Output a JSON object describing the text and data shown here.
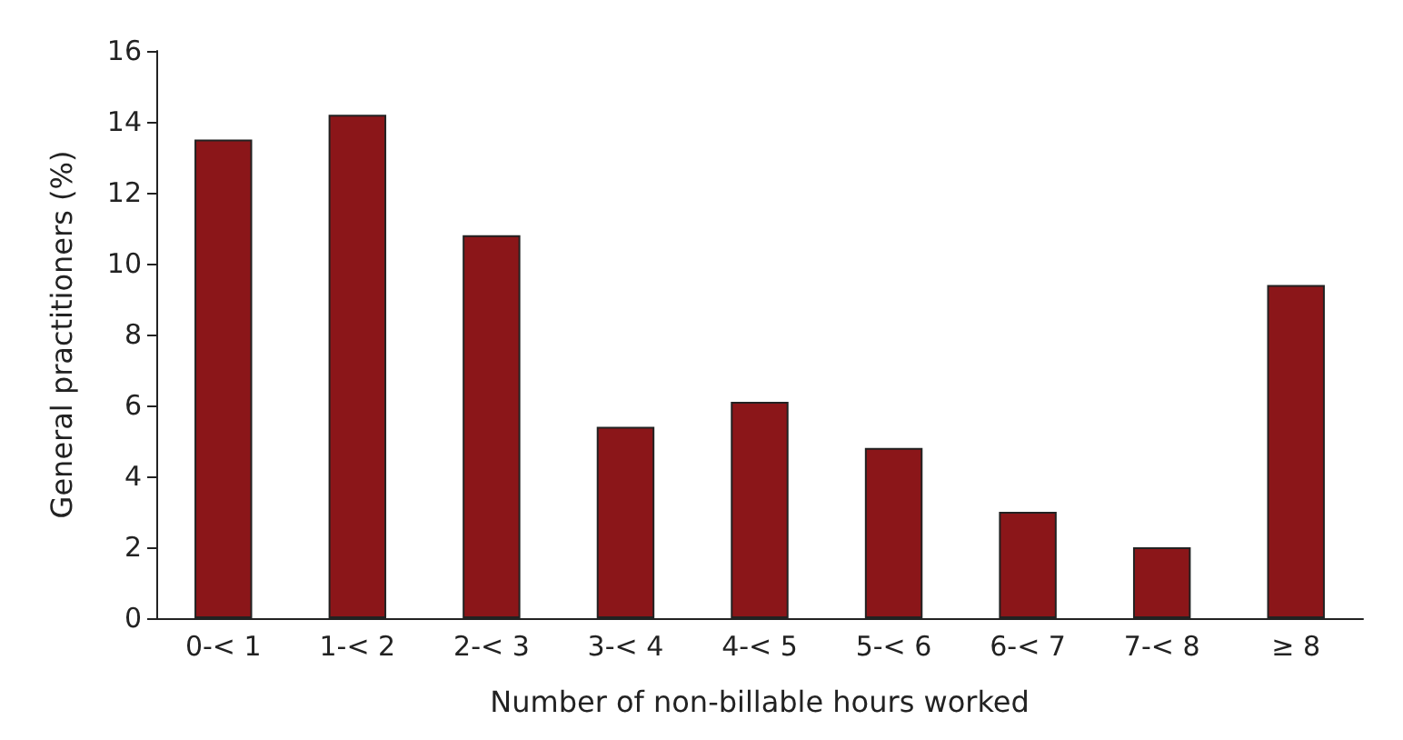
{
  "chart_data": {
    "type": "bar",
    "xlabel": "Number of non-billable hours worked",
    "ylabel": "General practitioners (%)",
    "categories": [
      "0-< 1",
      "1-< 2",
      "2-< 3",
      "3-< 4",
      "4-< 5",
      "5-< 6",
      "6-< 7",
      "7-< 8",
      "≥ 8"
    ],
    "values": [
      13.5,
      14.2,
      10.8,
      5.4,
      6.1,
      4.8,
      3.0,
      2.0,
      9.4
    ],
    "color": "#8b1619",
    "ylim": [
      0,
      16
    ],
    "yticks": [
      0,
      2,
      4,
      6,
      8,
      10,
      12,
      14,
      16
    ],
    "grid": false
  }
}
